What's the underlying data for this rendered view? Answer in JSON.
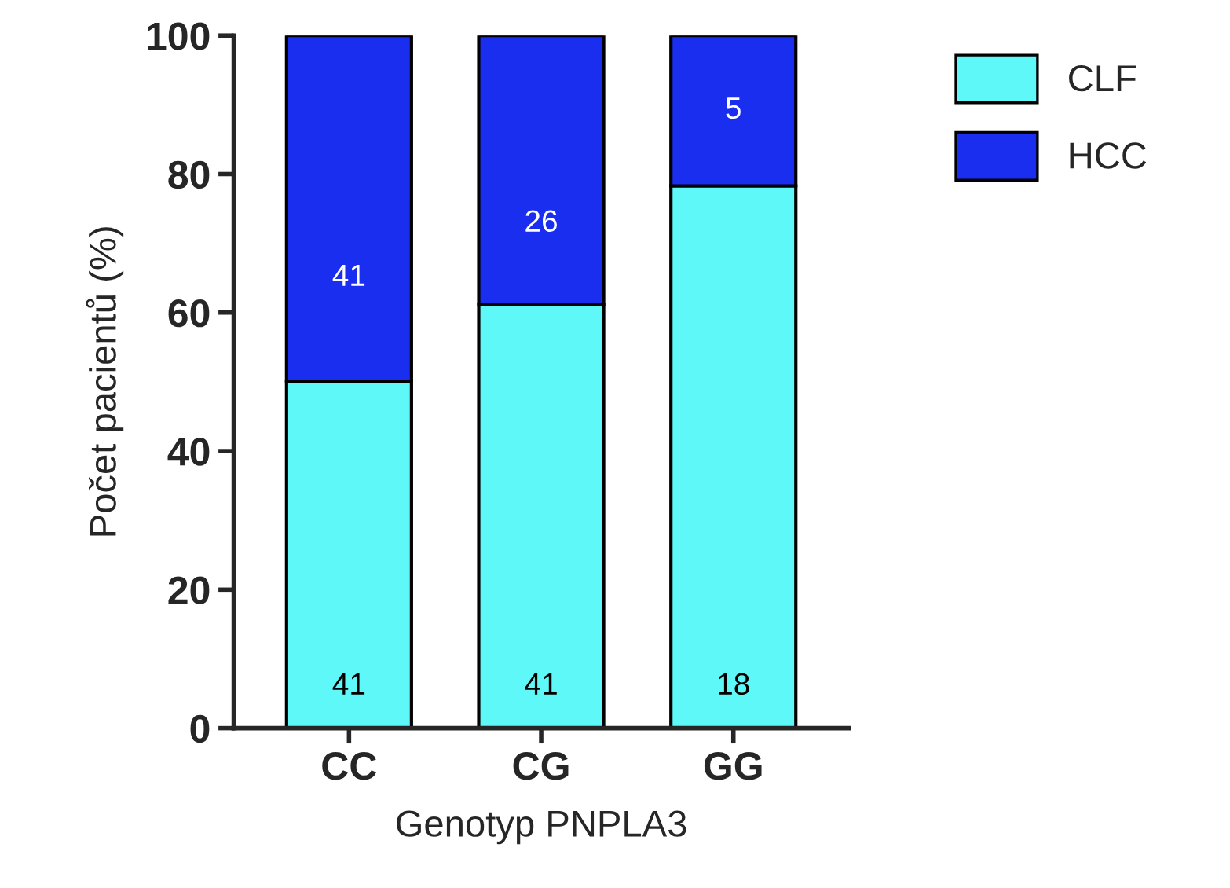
{
  "chart_data": {
    "type": "bar",
    "stacked": true,
    "categories": [
      "CC",
      "CG",
      "GG"
    ],
    "series": [
      {
        "name": "CLF",
        "color": "#5ef8f8",
        "values": [
          50,
          61.2,
          78.3
        ]
      },
      {
        "name": "HCC",
        "color": "#1a2ef0",
        "values": [
          50,
          38.8,
          21.7
        ]
      }
    ],
    "annotations": [
      "41",
      "41",
      "18",
      "41",
      "26",
      "5"
    ],
    "xlabel": "Genotyp PNPLA3",
    "ylabel": "Počet pacientů (%)",
    "ylim": [
      0,
      100
    ],
    "yticks": [
      0,
      20,
      40,
      60,
      80,
      100
    ],
    "grid": false,
    "legend": "top right"
  }
}
